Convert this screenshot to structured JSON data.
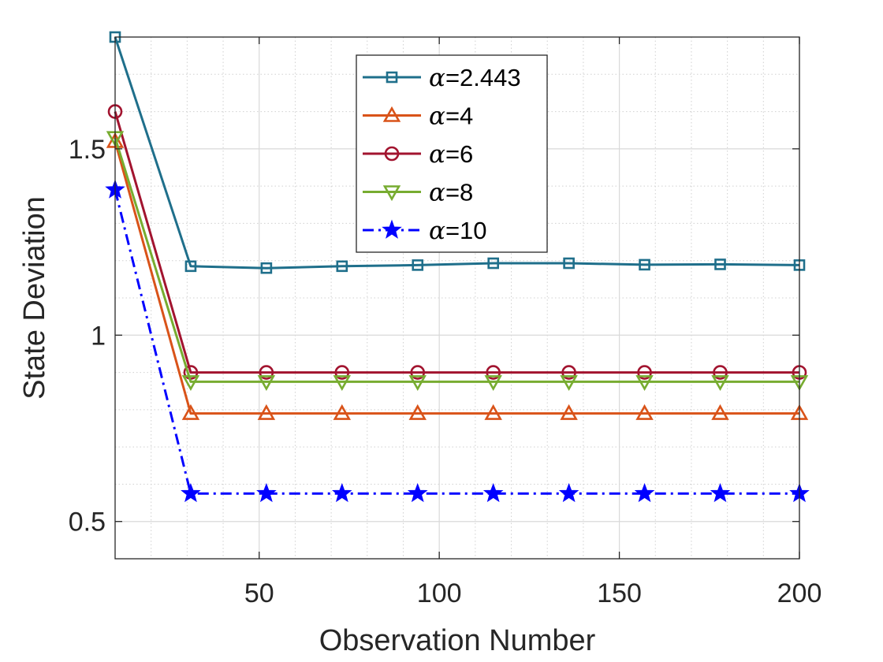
{
  "chart_data": {
    "type": "line",
    "title": "",
    "xlabel": "Observation Number",
    "ylabel": "State Deviation",
    "xlim": [
      10,
      200
    ],
    "ylim": [
      0.4,
      1.8
    ],
    "xticks": [
      50,
      100,
      150,
      200
    ],
    "xtick_labels": [
      "50",
      "100",
      "150",
      "200"
    ],
    "yticks": [
      0.5,
      1,
      1.5
    ],
    "ytick_labels": [
      "0.5",
      "1",
      "1.5"
    ],
    "grid": true,
    "minor_grid": true,
    "legend_position": "top-center",
    "x": [
      10,
      31,
      52,
      73,
      94,
      115,
      136,
      157,
      178,
      200
    ],
    "series": [
      {
        "name": "α=2.443",
        "label_symbol": "α",
        "label_value": "=2.443",
        "color": "#1f6f8b",
        "marker": "square",
        "linestyle": "solid",
        "values": [
          1.8,
          1.185,
          1.18,
          1.185,
          1.188,
          1.193,
          1.193,
          1.189,
          1.19,
          1.188
        ]
      },
      {
        "name": "α=4",
        "label_symbol": "α",
        "label_value": "=4",
        "color": "#d95319",
        "marker": "triangle-up",
        "linestyle": "solid",
        "values": [
          1.52,
          0.79,
          0.79,
          0.79,
          0.79,
          0.79,
          0.79,
          0.79,
          0.79,
          0.79
        ]
      },
      {
        "name": "α=6",
        "label_symbol": "α",
        "label_value": "=6",
        "color": "#a2142f",
        "marker": "circle",
        "linestyle": "solid",
        "values": [
          1.6,
          0.9,
          0.9,
          0.9,
          0.9,
          0.9,
          0.9,
          0.9,
          0.9,
          0.9
        ]
      },
      {
        "name": "α=8",
        "label_symbol": "α",
        "label_value": "=8",
        "color": "#77ac30",
        "marker": "triangle-down",
        "linestyle": "solid",
        "values": [
          1.53,
          0.875,
          0.875,
          0.875,
          0.875,
          0.875,
          0.875,
          0.875,
          0.875,
          0.875
        ]
      },
      {
        "name": "α=10",
        "label_symbol": "α",
        "label_value": "=10",
        "color": "#0000ff",
        "marker": "star",
        "linestyle": "dashdot",
        "values": [
          1.39,
          0.575,
          0.575,
          0.575,
          0.575,
          0.575,
          0.575,
          0.575,
          0.575,
          0.575
        ]
      }
    ]
  }
}
